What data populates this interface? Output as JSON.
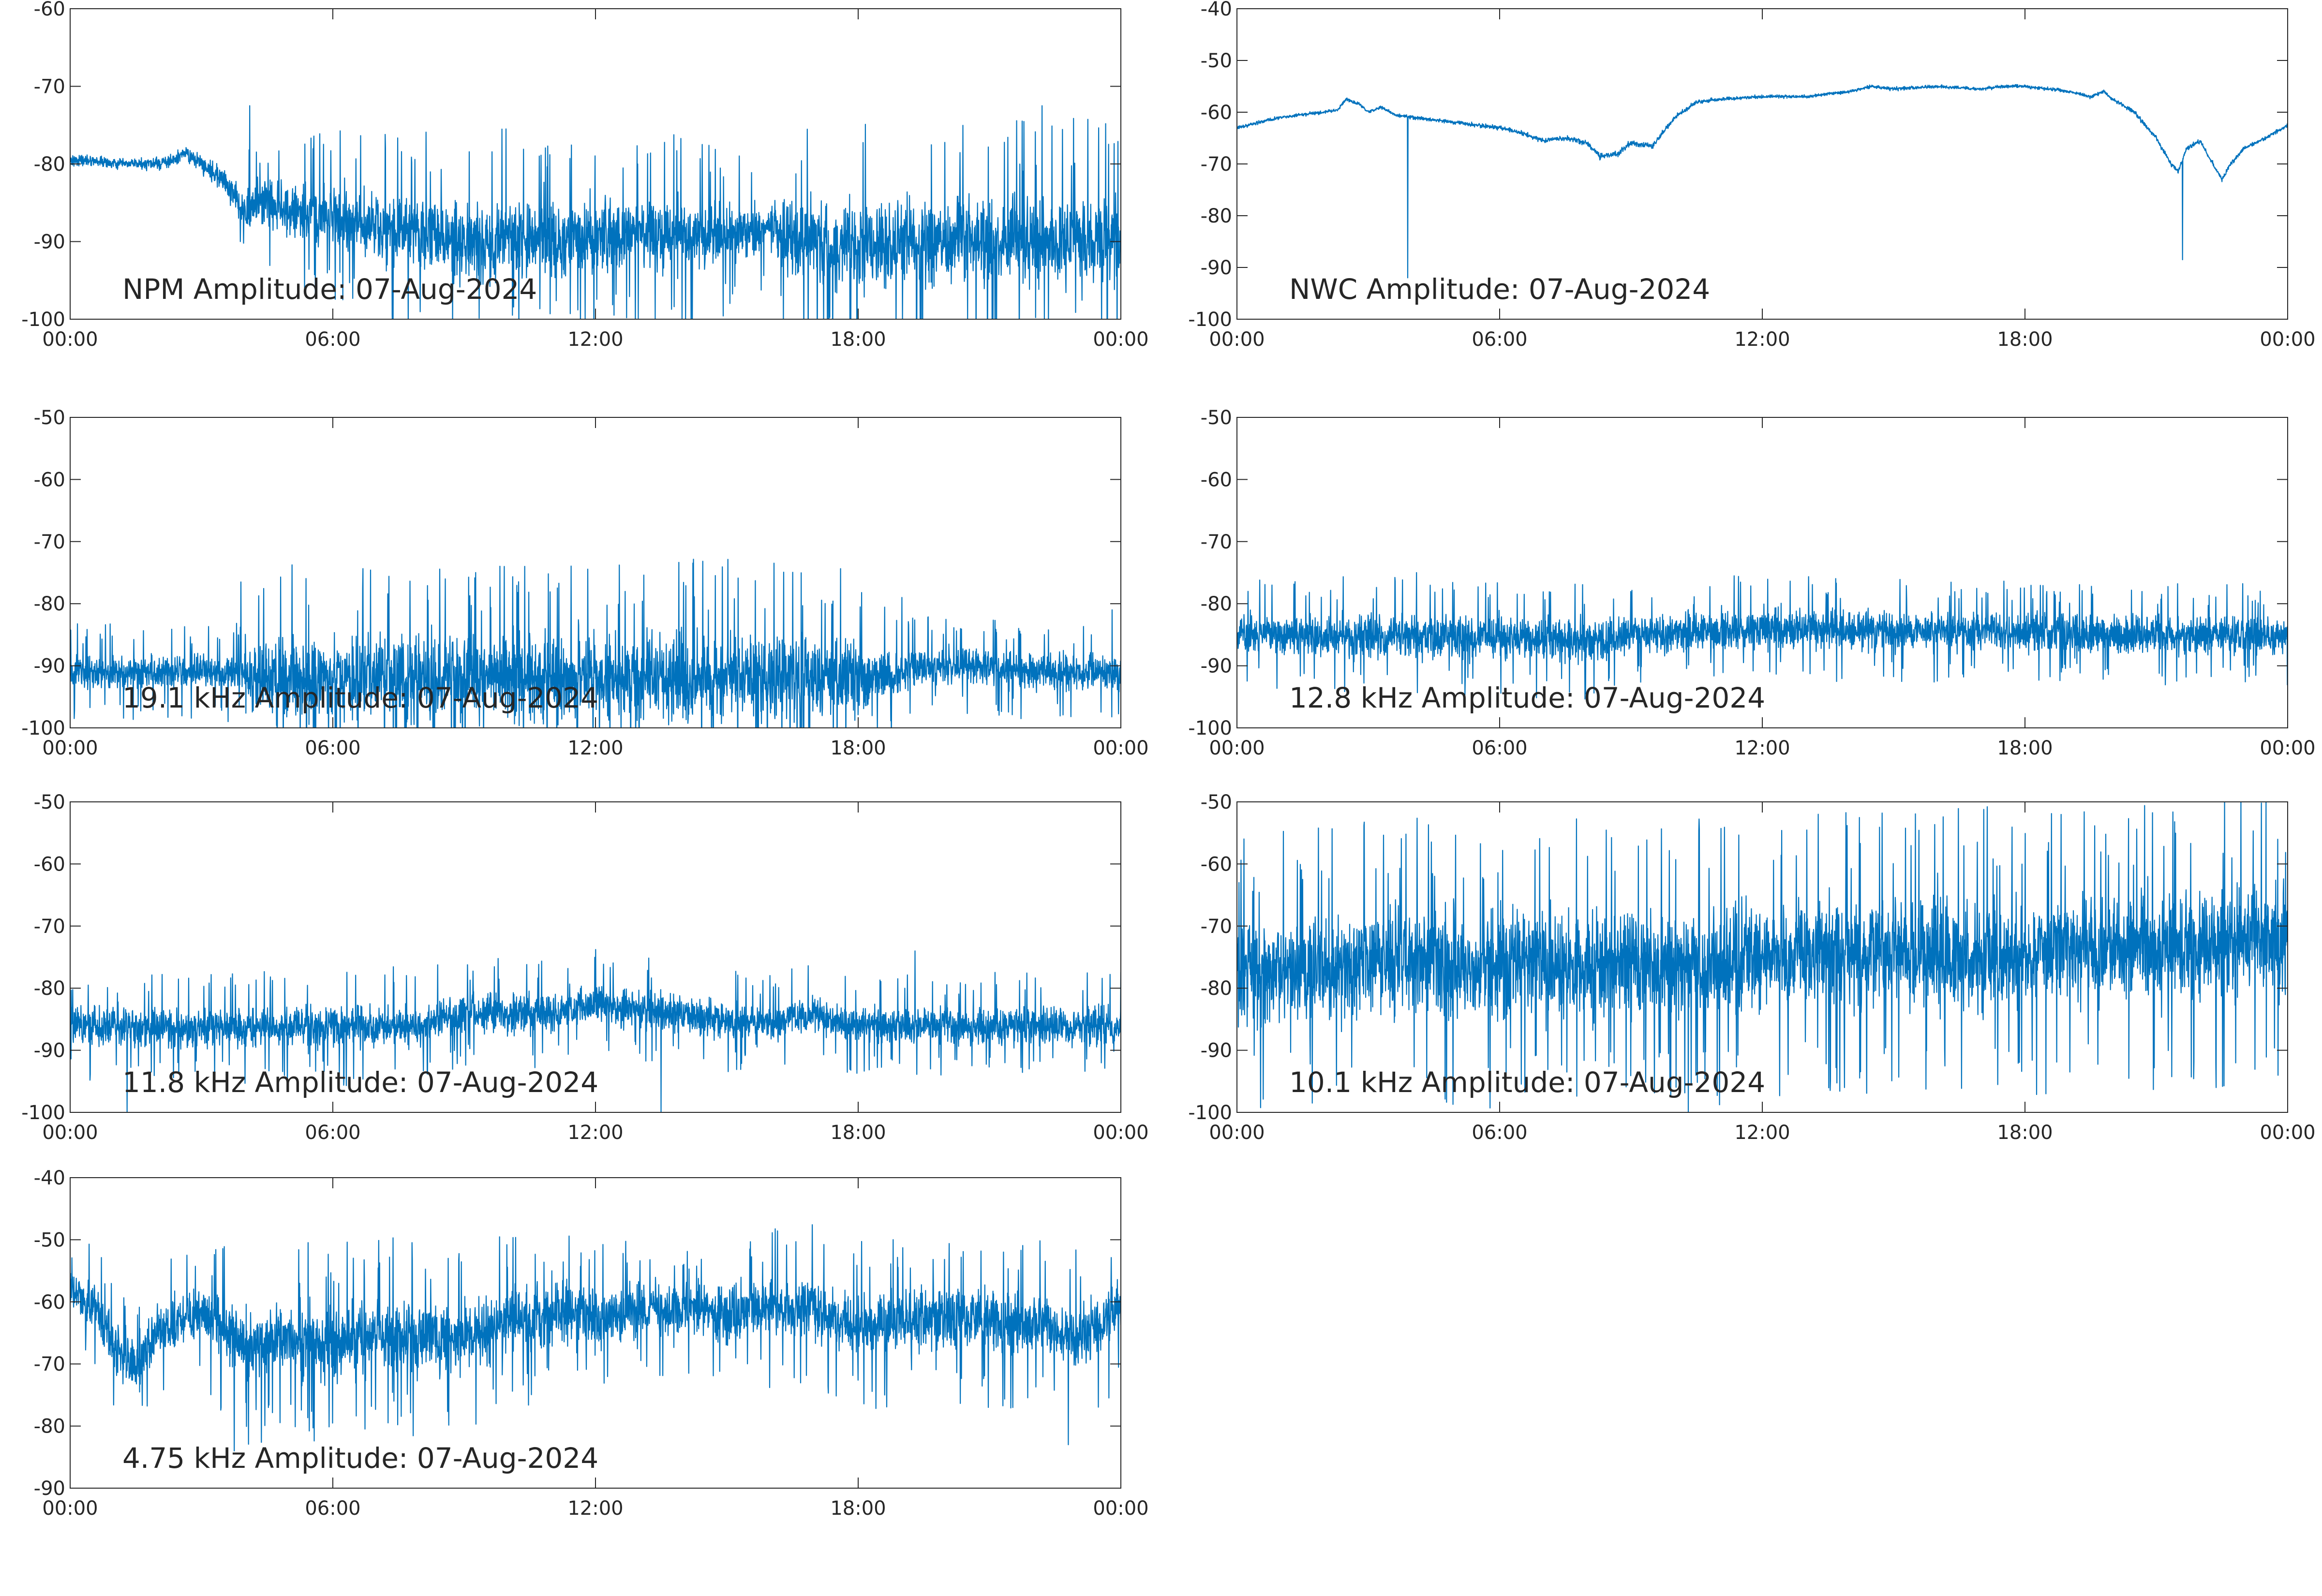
{
  "figure": {
    "background": "#ffffff",
    "axis_color": "#262626"
  },
  "chart_data": [
    {
      "type": "line",
      "title": "NPM Amplitude: 07-Aug-2024",
      "xlabel": "",
      "ylabel": "",
      "x_ticks": [
        "00:00",
        "06:00",
        "12:00",
        "18:00",
        "00:00"
      ],
      "y_ticks": [
        -100,
        -90,
        -80,
        -70,
        -60
      ],
      "ylim": [
        -100,
        -60
      ],
      "xlim_hours": [
        0,
        24
      ],
      "grid": false,
      "series": [
        {
          "color": "#0072BD",
          "x_hours": [
            0,
            0.5,
            1,
            1.5,
            2,
            2.4,
            2.6,
            3,
            3.5,
            4,
            4.5,
            5,
            6,
            7,
            8,
            9,
            10,
            11,
            12,
            13,
            14,
            15,
            16,
            16.5,
            17,
            18,
            19,
            20,
            21,
            22,
            23,
            24
          ],
          "center": [
            -79.5,
            -79.5,
            -80,
            -80,
            -80,
            -79.5,
            -78.5,
            -80,
            -82,
            -86,
            -85,
            -86,
            -87,
            -88,
            -89,
            -90,
            -89.5,
            -90,
            -89,
            -89,
            -89,
            -89,
            -88,
            -90,
            -90.5,
            -90.5,
            -90,
            -90,
            -90,
            -90,
            -90,
            -90
          ],
          "noise": [
            0.6,
            0.6,
            0.6,
            0.6,
            0.7,
            0.7,
            0.8,
            1.0,
            1.5,
            2.5,
            2.8,
            3.0,
            3.5,
            4.0,
            4.5,
            4.5,
            4.5,
            4.0,
            4.5,
            4.0,
            4.0,
            3.5,
            2.5,
            4.5,
            5.0,
            5.0,
            5.0,
            5.0,
            5.0,
            5.0,
            5.0,
            5.0
          ],
          "spikes": [
            {
              "x": 4.1,
              "y": -72.5
            },
            {
              "x": 22.2,
              "y": -72.5
            },
            {
              "x": 20.5,
              "y": -100
            },
            {
              "x": 22.25,
              "y": -100
            }
          ]
        }
      ]
    },
    {
      "type": "line",
      "title": "NWC Amplitude: 07-Aug-2024",
      "xlabel": "",
      "ylabel": "",
      "x_ticks": [
        "00:00",
        "06:00",
        "12:00",
        "18:00",
        "00:00"
      ],
      "y_ticks": [
        -100,
        -90,
        -80,
        -70,
        -60,
        -50,
        -40
      ],
      "ylim": [
        -100,
        -40
      ],
      "xlim_hours": [
        0,
        24
      ],
      "grid": false,
      "series": [
        {
          "color": "#0072BD",
          "x_hours": [
            0,
            0.5,
            1,
            1.5,
            2,
            2.3,
            2.5,
            2.8,
            3,
            3.3,
            3.6,
            4,
            5,
            6,
            6.5,
            7,
            7.5,
            8,
            8.3,
            8.7,
            9,
            9.5,
            10,
            10.5,
            11,
            12,
            13,
            14,
            14.5,
            15,
            16,
            17,
            17.5,
            18,
            18.5,
            19,
            19.5,
            19.8,
            20,
            20.5,
            21,
            21.3,
            21.5,
            21.7,
            22,
            22.3,
            22.5,
            22.7,
            23,
            23.5,
            24
          ],
          "center": [
            -63,
            -62,
            -61,
            -60.5,
            -60,
            -59.5,
            -57.5,
            -58.5,
            -60,
            -59,
            -60.5,
            -61,
            -62,
            -63,
            -64,
            -65.5,
            -65,
            -66,
            -68.5,
            -68,
            -66,
            -66.5,
            -61,
            -58,
            -57.5,
            -57,
            -57,
            -56,
            -55,
            -55.5,
            -55,
            -55.5,
            -55,
            -55,
            -55.5,
            -56,
            -57,
            -56,
            -57.5,
            -60,
            -65,
            -69.5,
            -71.5,
            -67,
            -65.5,
            -70,
            -73,
            -70,
            -67,
            -65,
            -62.5
          ],
          "noise": [
            0.3,
            0.3,
            0.3,
            0.3,
            0.3,
            0.3,
            0.3,
            0.3,
            0.3,
            0.3,
            0.3,
            0.3,
            0.3,
            0.4,
            0.4,
            0.4,
            0.4,
            0.5,
            0.6,
            0.6,
            0.5,
            0.5,
            0.4,
            0.3,
            0.3,
            0.3,
            0.3,
            0.3,
            0.3,
            0.3,
            0.3,
            0.3,
            0.3,
            0.3,
            0.3,
            0.3,
            0.3,
            0.3,
            0.3,
            0.4,
            0.4,
            0.4,
            0.4,
            0.4,
            0.4,
            0.4,
            0.4,
            0.4,
            0.3,
            0.3,
            0.3
          ],
          "spikes": [
            {
              "x": 3.9,
              "y": -92
            },
            {
              "x": 21.6,
              "y": -88.5
            }
          ]
        }
      ]
    },
    {
      "type": "line",
      "title": "19.1 kHz Amplitude: 07-Aug-2024",
      "xlabel": "",
      "ylabel": "",
      "x_ticks": [
        "00:00",
        "06:00",
        "12:00",
        "18:00",
        "00:00"
      ],
      "y_ticks": [
        -100,
        -90,
        -80,
        -70,
        -60,
        -50
      ],
      "ylim": [
        -100,
        -50
      ],
      "xlim_hours": [
        0,
        24
      ],
      "grid": false,
      "series": [
        {
          "color": "#0072BD",
          "x_hours": [
            0,
            2,
            4,
            4.2,
            6,
            8,
            10,
            12,
            14,
            16,
            18,
            19,
            19.5,
            21,
            22,
            24
          ],
          "center": [
            -91,
            -91,
            -91,
            -92,
            -92,
            -92,
            -92,
            -92,
            -92,
            -92,
            -92,
            -91,
            -90,
            -90,
            -91,
            -91
          ],
          "noise": [
            2.5,
            2.5,
            2.5,
            5.5,
            6.0,
            6.0,
            6.0,
            6.0,
            6.0,
            6.0,
            5.5,
            3.0,
            2.5,
            2.5,
            2.5,
            2.5
          ],
          "spikes": [
            {
              "x": 3.9,
              "y": -76.5
            },
            {
              "x": 19.0,
              "y": -79
            },
            {
              "x": 23.8,
              "y": -81
            }
          ]
        }
      ]
    },
    {
      "type": "line",
      "title": "12.8 kHz Amplitude: 07-Aug-2024",
      "xlabel": "",
      "ylabel": "",
      "x_ticks": [
        "00:00",
        "06:00",
        "12:00",
        "18:00",
        "00:00"
      ],
      "y_ticks": [
        -100,
        -90,
        -80,
        -70,
        -60,
        -50
      ],
      "ylim": [
        -100,
        -50
      ],
      "xlim_hours": [
        0,
        24
      ],
      "grid": false,
      "series": [
        {
          "color": "#0072BD",
          "x_hours": [
            0,
            4,
            8,
            9,
            12,
            16,
            20,
            24
          ],
          "center": [
            -85,
            -85,
            -86,
            -85,
            -84,
            -84.5,
            -85,
            -85
          ],
          "noise": [
            2.8,
            3.0,
            3.0,
            2.8,
            2.8,
            2.6,
            2.6,
            2.6
          ],
          "spikes": [
            {
              "x": 4.1,
              "y": -75
            },
            {
              "x": 8.5,
              "y": -92
            }
          ]
        }
      ]
    },
    {
      "type": "line",
      "title": "11.8 kHz Amplitude: 07-Aug-2024",
      "xlabel": "",
      "ylabel": "",
      "x_ticks": [
        "00:00",
        "06:00",
        "12:00",
        "18:00",
        "00:00"
      ],
      "y_ticks": [
        -100,
        -90,
        -80,
        -70,
        -60,
        -50
      ],
      "ylim": [
        -100,
        -50
      ],
      "xlim_hours": [
        0,
        24
      ],
      "grid": false,
      "series": [
        {
          "color": "#0072BD",
          "x_hours": [
            0,
            4,
            8,
            9,
            11,
            12,
            16,
            17,
            18,
            24
          ],
          "center": [
            -86,
            -86.5,
            -86,
            -84,
            -84,
            -82.5,
            -86,
            -84,
            -86,
            -86
          ],
          "noise": [
            2.8,
            3.0,
            3.0,
            2.8,
            2.8,
            2.8,
            2.6,
            2.6,
            2.6,
            2.8
          ],
          "spikes": [
            {
              "x": 19.3,
              "y": -74
            },
            {
              "x": 13.5,
              "y": -100
            },
            {
              "x": 1.3,
              "y": -100
            }
          ]
        }
      ]
    },
    {
      "type": "line",
      "title": "10.1 kHz Amplitude: 07-Aug-2024",
      "xlabel": "",
      "ylabel": "",
      "x_ticks": [
        "00:00",
        "06:00",
        "12:00",
        "18:00",
        "00:00"
      ],
      "y_ticks": [
        -100,
        -90,
        -80,
        -70,
        -60,
        -50
      ],
      "ylim": [
        -100,
        -50
      ],
      "xlim_hours": [
        0,
        24
      ],
      "grid": false,
      "series": [
        {
          "color": "#0072BD",
          "x_hours": [
            0,
            4,
            8,
            12,
            13,
            16,
            20,
            24
          ],
          "center": [
            -78,
            -76,
            -76,
            -76,
            -74,
            -75,
            -74,
            -72
          ],
          "noise": [
            7.0,
            7.5,
            7.5,
            7.5,
            7.0,
            7.5,
            7.5,
            7.5
          ],
          "spikes": [
            {
              "x": 0.05,
              "y": -63
            }
          ]
        }
      ]
    },
    {
      "type": "line",
      "title": "4.75 kHz Amplitude: 07-Aug-2024",
      "xlabel": "",
      "ylabel": "",
      "x_ticks": [
        "00:00",
        "06:00",
        "12:00",
        "18:00",
        "00:00"
      ],
      "y_ticks": [
        -90,
        -80,
        -70,
        -60,
        -50,
        -40
      ],
      "ylim": [
        -90,
        -40
      ],
      "xlim_hours": [
        0,
        24
      ],
      "grid": false,
      "series": [
        {
          "color": "#0072BD",
          "x_hours": [
            0,
            0.5,
            1,
            1.5,
            2,
            3,
            4,
            5,
            6,
            7,
            8,
            9,
            10,
            11,
            12,
            13,
            14,
            15,
            16,
            17,
            18,
            19,
            20,
            21,
            22,
            23,
            24
          ],
          "center": [
            -58,
            -60,
            -67,
            -71,
            -64,
            -62,
            -67,
            -66,
            -67,
            -65,
            -66,
            -66,
            -63,
            -62,
            -63,
            -61,
            -61,
            -62,
            -61,
            -61,
            -64,
            -63,
            -62,
            -63,
            -63,
            -66,
            -61
          ],
          "noise": [
            2.5,
            3.0,
            4.0,
            4.0,
            3.5,
            3.5,
            5.0,
            5.0,
            5.0,
            5.0,
            5.0,
            5.0,
            4.5,
            4.5,
            4.0,
            3.5,
            3.5,
            4.0,
            4.0,
            4.5,
            4.5,
            4.5,
            4.5,
            4.5,
            4.5,
            4.5,
            4.0
          ],
          "spikes": [
            {
              "x": 3.75,
              "y": -84
            },
            {
              "x": 22.8,
              "y": -83
            },
            {
              "x": 11.0,
              "y": -55
            }
          ]
        }
      ]
    }
  ]
}
